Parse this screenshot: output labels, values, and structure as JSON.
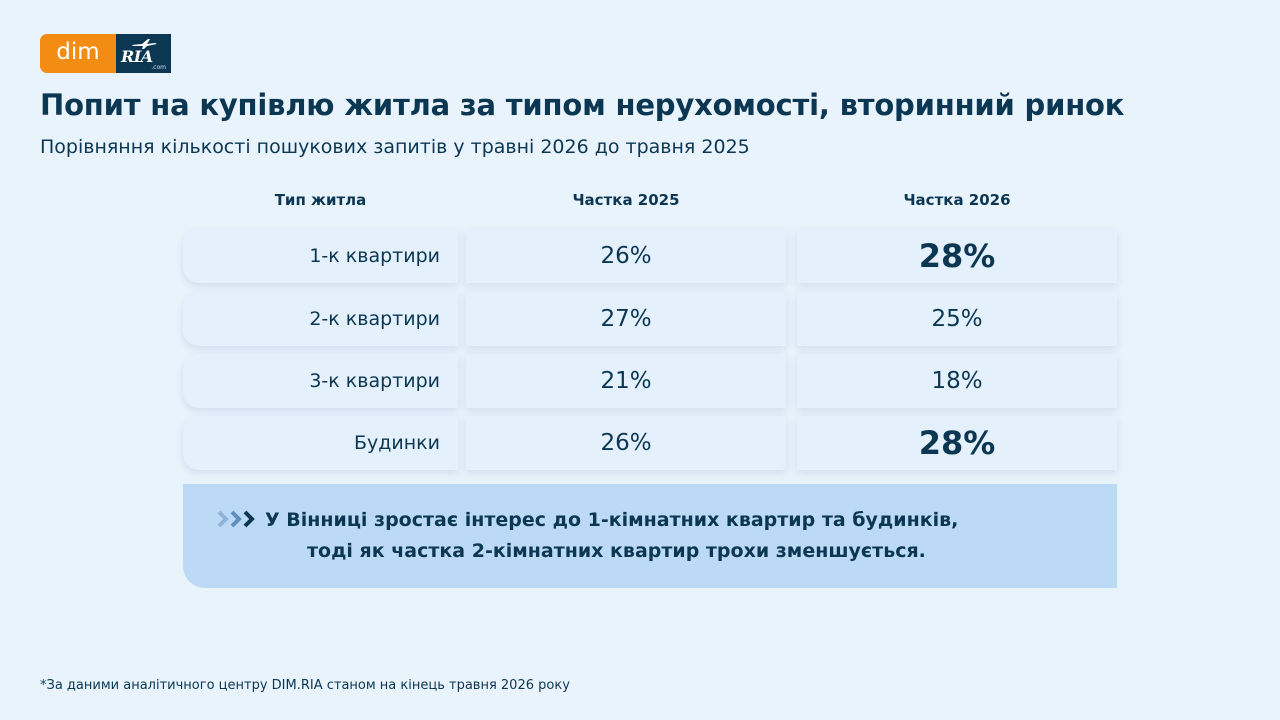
{
  "logo": {
    "dim": "dim",
    "ria": "RIA",
    "ria_com": ".com"
  },
  "title": "Попит на купівлю житла за типом нерухомості, вторинний ринок",
  "subtitle": "Порівняння кількості пошукових запитів у травні 2026 до травня 2025",
  "chart_data": {
    "type": "table",
    "columns": [
      "Тип житла",
      "Частка 2025",
      "Частка 2026"
    ],
    "rows": [
      {
        "type": "1-к квартири",
        "share_2025": "26%",
        "share_2026": "28%",
        "highlight_2026": true
      },
      {
        "type": "2-к квартири",
        "share_2025": "27%",
        "share_2026": "25%",
        "highlight_2026": false
      },
      {
        "type": "3-к квартири",
        "share_2025": "21%",
        "share_2026": "18%",
        "highlight_2026": false
      },
      {
        "type": "Будинки",
        "share_2025": "26%",
        "share_2026": "28%",
        "highlight_2026": true
      }
    ]
  },
  "callout": {
    "line1": "У Вінниці зростає інтерес до 1-кімнатних квартир та будинків,",
    "line2": "тоді як частка 2-кімнатних квартир трохи зменшується."
  },
  "footnote": "*За даними аналітичного центру DIM.RIA станом на кінець травня 2026 року",
  "colors": {
    "background": "#e9f3fc",
    "text": "#0b3753",
    "accent_orange": "#f28c13",
    "callout_bg": "#bcdaf6",
    "arrow_light": "#8fb4d8"
  }
}
